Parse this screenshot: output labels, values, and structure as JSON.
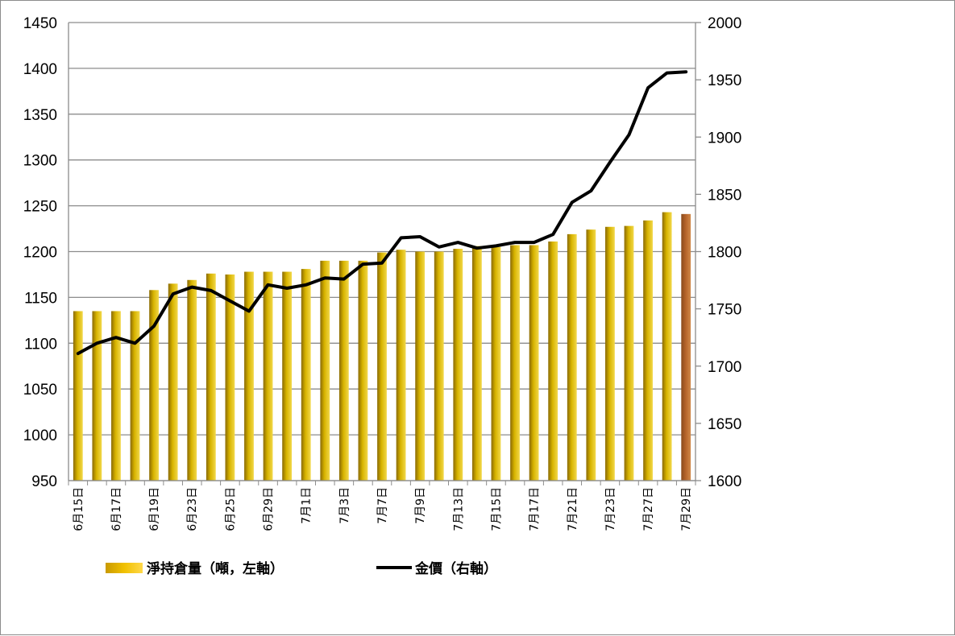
{
  "chart_data": {
    "type": "bar",
    "categories": [
      "6月15日",
      "6月16日",
      "6月17日",
      "6月18日",
      "6月19日",
      "6月22日",
      "6月23日",
      "6月24日",
      "6月25日",
      "6月26日",
      "6月29日",
      "6月30日",
      "7月1日",
      "7月2日",
      "7月3日",
      "7月6日",
      "7月7日",
      "7月8日",
      "7月9日",
      "7月10日",
      "7月13日",
      "7月14日",
      "7月15日",
      "7月16日",
      "7月17日",
      "7月20日",
      "7月21日",
      "7月22日",
      "7月23日",
      "7月24日",
      "7月27日",
      "7月28日",
      "7月29日"
    ],
    "x_tick_labels": [
      "6月15日",
      "6月17日",
      "6月19日",
      "6月23日",
      "6月25日",
      "6月29日",
      "7月1日",
      "7月3日",
      "7月7日",
      "7月9日",
      "7月13日",
      "7月15日",
      "7月17日",
      "7月21日",
      "7月23日",
      "7月27日",
      "7月29日"
    ],
    "x_tick_indices": [
      0,
      2,
      4,
      6,
      8,
      10,
      12,
      14,
      16,
      18,
      20,
      22,
      24,
      26,
      28,
      30,
      32
    ],
    "series": [
      {
        "name": "淨持倉量（噸，左軸）",
        "kind": "bar",
        "axis": "left",
        "color": "#c9a000",
        "last_bar_color": "#b0622a",
        "values": [
          1135,
          1135,
          1135,
          1135,
          1158,
          1165,
          1169,
          1176,
          1175,
          1178,
          1178,
          1178,
          1181,
          1190,
          1190,
          1190,
          1199,
          1202,
          1200,
          1200,
          1203,
          1206,
          1205,
          1207,
          1207,
          1211,
          1219,
          1224,
          1227,
          1228,
          1234,
          1243,
          1241
        ]
      },
      {
        "name": "金價（右軸）",
        "kind": "line",
        "axis": "right",
        "color": "#000000",
        "values": [
          1711,
          1720,
          1725,
          1720,
          1735,
          1763,
          1769,
          1766,
          1757,
          1748,
          1771,
          1768,
          1771,
          1777,
          1776,
          1789,
          1790,
          1812,
          1813,
          1804,
          1808,
          1803,
          1805,
          1808,
          1808,
          1815,
          1843,
          1853,
          1878,
          1902,
          1943,
          1956,
          1957
        ]
      }
    ],
    "y_left": {
      "ylim": [
        950,
        1450
      ],
      "ticks": [
        950,
        1000,
        1050,
        1100,
        1150,
        1200,
        1250,
        1300,
        1350,
        1400,
        1450
      ]
    },
    "y_right": {
      "ylim": [
        1600,
        2000
      ],
      "ticks": [
        1600,
        1650,
        1700,
        1750,
        1800,
        1850,
        1900,
        1950,
        2000
      ]
    },
    "grid": true,
    "legend_position": "bottom",
    "title": "",
    "xlabel": "",
    "ylabel": ""
  },
  "legend": {
    "bar_label": "淨持倉量（噸，左軸）",
    "line_label": "金價（右軸）"
  }
}
